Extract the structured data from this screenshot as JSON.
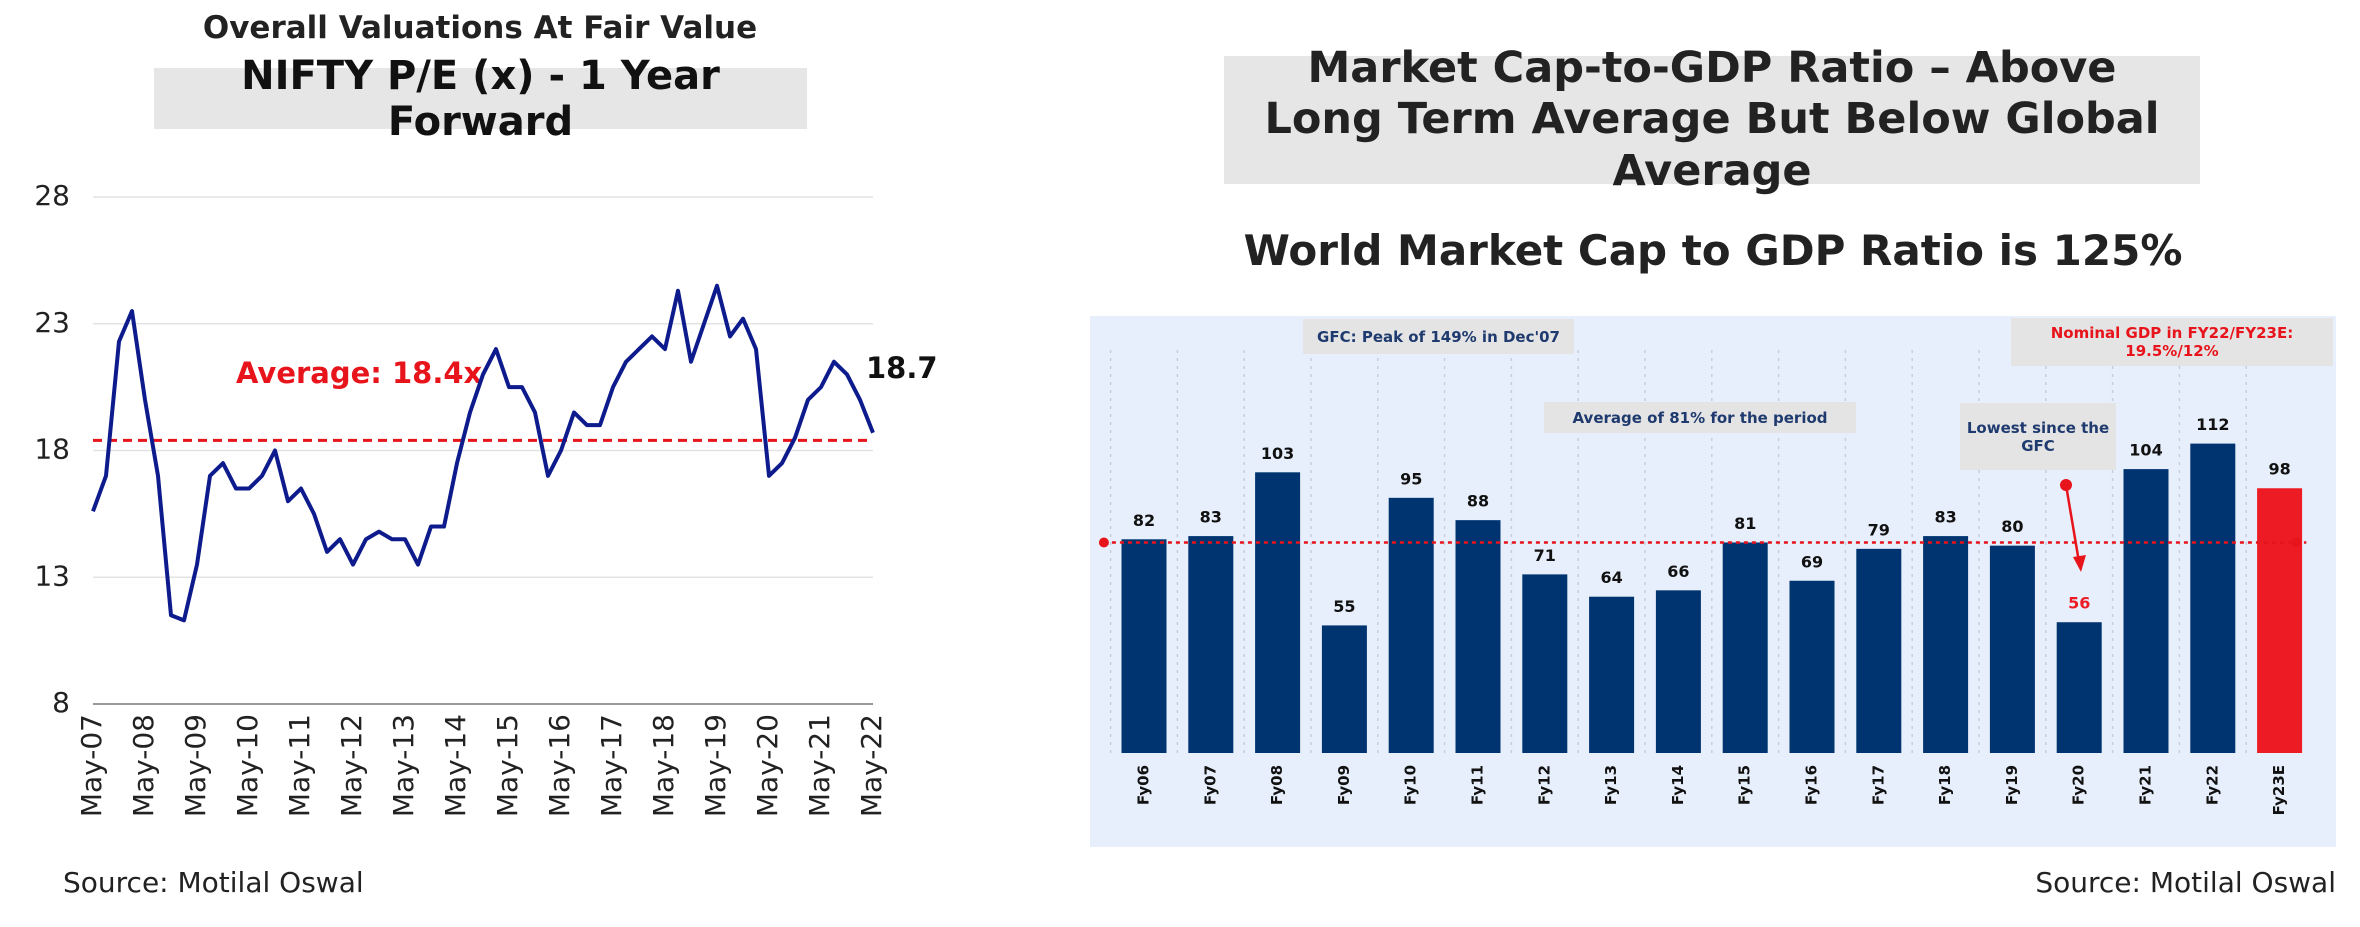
{
  "chart_data": [
    {
      "type": "line",
      "title": "Overall Valuations At Fair Value",
      "subtitle": "NIFTY P/E (x) - 1 Year Forward",
      "categories": [
        "May-07",
        null,
        null,
        null,
        "May-08",
        null,
        null,
        null,
        "May-09",
        null,
        null,
        null,
        "May-10",
        null,
        null,
        null,
        "May-11",
        null,
        null,
        null,
        "May-12",
        null,
        null,
        null,
        "May-13",
        null,
        null,
        null,
        "May-14",
        null,
        null,
        null,
        "May-15",
        null,
        null,
        null,
        "May-16",
        null,
        null,
        null,
        "May-17",
        null,
        null,
        null,
        "May-18",
        null,
        null,
        null,
        "May-19",
        null,
        null,
        null,
        "May-20",
        null,
        null,
        null,
        "May-21",
        null,
        null,
        null,
        "May-22"
      ],
      "values": [
        15.6,
        17,
        22.3,
        23.5,
        20,
        17,
        11.5,
        11.3,
        13.5,
        17,
        17.5,
        16.5,
        16.5,
        17,
        18,
        16,
        16.5,
        15.5,
        14,
        14.5,
        13.5,
        14.5,
        14.8,
        14.5,
        14.5,
        13.5,
        15,
        15,
        17.5,
        19.5,
        21,
        22,
        20.5,
        20.5,
        19.5,
        17,
        18,
        19.5,
        19,
        19,
        20.5,
        21.5,
        22,
        22.5,
        22,
        24.3,
        21.5,
        23,
        24.5,
        22.5,
        23.2,
        22,
        17,
        17.5,
        18.5,
        20,
        20.5,
        21.5,
        21,
        20,
        18.7
      ],
      "color": "#0d1b8c",
      "ylim": [
        8,
        28
      ],
      "yticks": [
        8,
        13,
        18,
        23,
        28
      ],
      "grid": true,
      "average": 18.4,
      "average_color": "#e8141b",
      "average_label": "Average: 18.4x",
      "source": "Source: Motilal Oswal"
    },
    {
      "type": "bar",
      "title": "Market Cap-to-GDP Ratio – Above Long Term Average But Below Global Average",
      "subtitle": "World Market Cap to GDP Ratio is 125%",
      "categories": [
        "Fy06",
        "Fy07",
        "Fy08",
        "Fy09",
        "Fy10",
        "Fy11",
        "Fy12",
        "Fy13",
        "Fy14",
        "Fy15",
        "Fy16",
        "Fy17",
        "Fy18",
        "Fy19",
        "Fy20",
        "Fy21",
        "Fy22",
        "Fy23E"
      ],
      "values": [
        82,
        83,
        103,
        55,
        95,
        88,
        71,
        64,
        66,
        81,
        69,
        79,
        83,
        80,
        56,
        104,
        112,
        98
      ],
      "colors": [
        "#003471",
        "#003471",
        "#003471",
        "#003471",
        "#003471",
        "#003471",
        "#003471",
        "#003471",
        "#003471",
        "#003471",
        "#003471",
        "#003471",
        "#003471",
        "#003471",
        "#003471",
        "#003471",
        "#003471",
        "#ed1c24"
      ],
      "value_label_colors": [
        "#111",
        "#111",
        "#111",
        "#111",
        "#111",
        "#111",
        "#111",
        "#111",
        "#111",
        "#111",
        "#111",
        "#111",
        "#111",
        "#111",
        "#ed1c24",
        "#111",
        "#111",
        "#111"
      ],
      "ylim": [
        15,
        152
      ],
      "average": 81,
      "average_color": "#e8141b",
      "annotations": [
        "GFC: Peak of 149% in Dec'07",
        "Average of 81% for the period",
        "Lowest since the GFC",
        "Nominal GDP in FY22/FY23E: 19.5%/12%"
      ],
      "source": "Source: Motilal Oswal"
    }
  ]
}
